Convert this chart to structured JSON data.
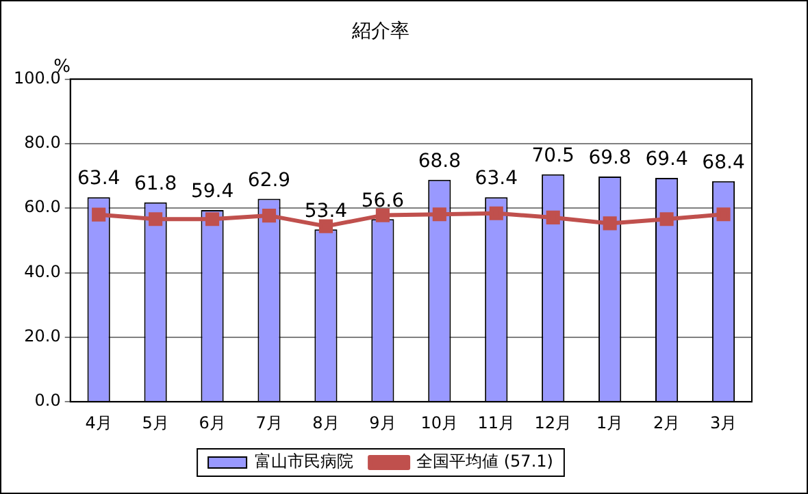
{
  "chart_data": {
    "type": "bar",
    "title": "紹介率",
    "ylabel": "%",
    "categories": [
      "4月",
      "5月",
      "6月",
      "7月",
      "8月",
      "9月",
      "10月",
      "11月",
      "12月",
      "1月",
      "2月",
      "3月"
    ],
    "series": [
      {
        "name": "富山市民病院",
        "color": "#9999ff",
        "values": [
          63.4,
          61.8,
          59.4,
          62.9,
          53.4,
          56.6,
          68.8,
          63.4,
          70.5,
          69.8,
          69.4,
          68.4
        ],
        "data_labels": true
      },
      {
        "name": "全国平均値 (57.1)",
        "type": "line",
        "color": "#c0504d",
        "marker": "square",
        "values": [
          58.0,
          56.6,
          56.6,
          57.7,
          54.4,
          57.8,
          58.1,
          58.4,
          57.1,
          55.3,
          56.6,
          58.1
        ]
      }
    ],
    "ylim": [
      0,
      100
    ],
    "yticks": [
      {
        "value": 0,
        "label": "0.0"
      },
      {
        "value": 20,
        "label": "20.0"
      },
      {
        "value": 40,
        "label": "40.0"
      },
      {
        "value": 60,
        "label": "60.0"
      },
      {
        "value": 80,
        "label": "80.0"
      },
      {
        "value": 100,
        "label": "100.0"
      }
    ],
    "grid": "y",
    "legend": "bottom"
  }
}
